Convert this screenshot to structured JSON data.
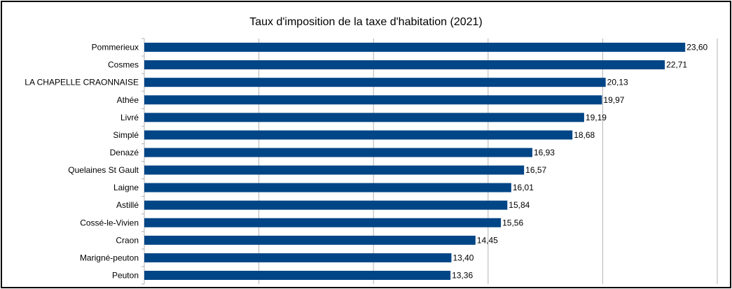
{
  "chart_data": {
    "type": "bar",
    "orientation": "horizontal",
    "title": "Taux d'imposition de la taxe d'habitation (2021)",
    "xlabel": "",
    "ylabel": "",
    "categories": [
      "Pommerieux",
      "Cosmes",
      "LA CHAPELLE CRAONNAISE",
      "Athée",
      "Livré",
      "Simplé",
      "Denazé",
      "Quelaines St Gault",
      "Laigne",
      "Astillé",
      "Cossé-le-Vivien",
      "Craon",
      "Marigné-peuton",
      "Peuton"
    ],
    "values": [
      23.6,
      22.71,
      20.13,
      19.97,
      19.19,
      18.68,
      16.93,
      16.57,
      16.01,
      15.84,
      15.56,
      14.45,
      13.4,
      13.36
    ],
    "value_labels": [
      "23,60",
      "22,71",
      "20,13",
      "19,97",
      "19,19",
      "18,68",
      "16,93",
      "16,57",
      "16,01",
      "15,84",
      "15,56",
      "14,45",
      "13,40",
      "13,36"
    ],
    "xlim": [
      0,
      25
    ],
    "grid": true,
    "bar_color": "#004586",
    "grid_color": "#b3b3b3"
  }
}
